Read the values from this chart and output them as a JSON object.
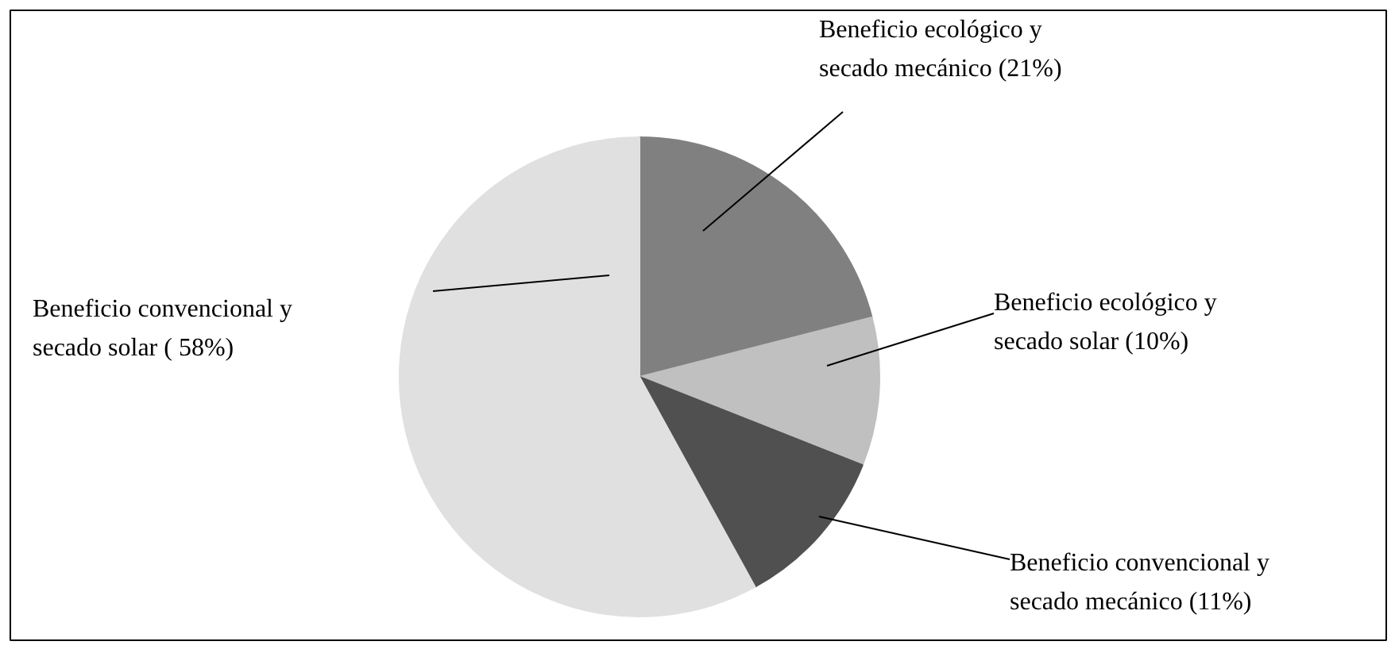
{
  "chart_data": {
    "type": "pie",
    "categories": [
      "Beneficio ecológico y\nsecado mecánico",
      "Beneficio ecológico y\nsecado solar",
      "Beneficio convencional  y\nsecado mecánico",
      "Beneficio convencional y\nsecado solar"
    ],
    "values": [
      21,
      10,
      11,
      58
    ],
    "value_labels": [
      "(21%)",
      "(10%)",
      "(11%)",
      "( 58%)"
    ],
    "colors": [
      "#808080",
      "#c0c0c0",
      "#505050",
      "#e0e0e0"
    ]
  }
}
